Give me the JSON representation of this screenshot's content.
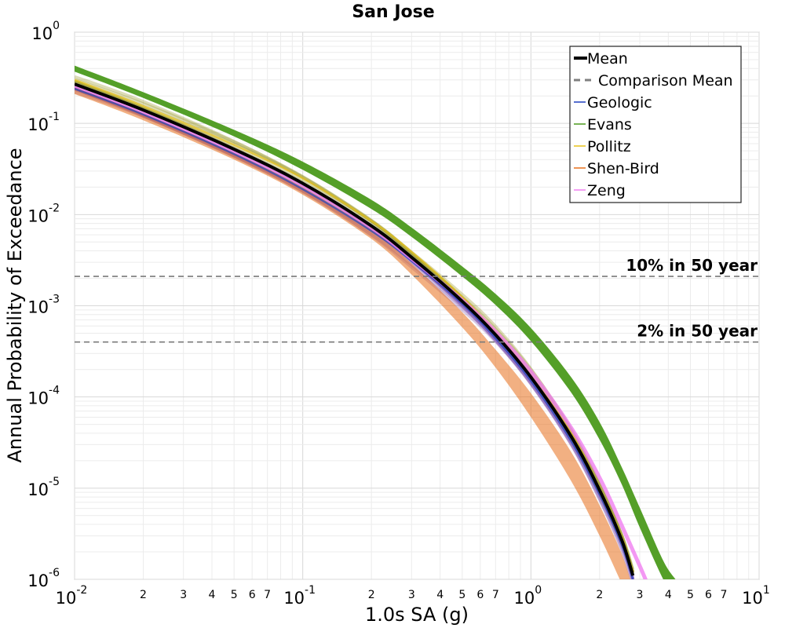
{
  "chart_data": {
    "type": "line",
    "title": "San Jose",
    "xlabel": "1.0s SA (g)",
    "ylabel": "Annual Probability of Exceedance",
    "xscale": "log",
    "yscale": "log",
    "xlim": [
      0.01,
      10
    ],
    "ylim": [
      1e-06,
      1
    ],
    "grid": true,
    "legend_position": "top-right",
    "x_major_ticks": [
      {
        "base": "10",
        "exp": "-2"
      },
      {
        "base": "10",
        "exp": "-1"
      },
      {
        "base": "10",
        "exp": "0"
      },
      {
        "base": "10",
        "exp": "1"
      }
    ],
    "y_major_ticks": [
      {
        "base": "10",
        "exp": "0"
      },
      {
        "base": "10",
        "exp": "-1"
      },
      {
        "base": "10",
        "exp": "-2"
      },
      {
        "base": "10",
        "exp": "-3"
      },
      {
        "base": "10",
        "exp": "-4"
      },
      {
        "base": "10",
        "exp": "-5"
      },
      {
        "base": "10",
        "exp": "-6"
      }
    ],
    "x_minor_tick_labels": [
      "2",
      "3",
      "4",
      "5",
      "6",
      "7"
    ],
    "reference_lines": [
      {
        "label": "10% in 50 year",
        "y": 0.0021
      },
      {
        "label": "2% in 50 year",
        "y": 0.0004
      }
    ],
    "series": [
      {
        "name": "Mean",
        "color": "#000000",
        "style": "solid-thick",
        "x": [
          0.01,
          0.02,
          0.05,
          0.1,
          0.2,
          0.3,
          0.5,
          0.7,
          1.0,
          1.5,
          2.0,
          2.5,
          2.8
        ],
        "y": [
          0.27,
          0.14,
          0.052,
          0.022,
          0.0075,
          0.0034,
          0.00112,
          0.00048,
          0.000165,
          3.7e-05,
          9.5e-06,
          2.7e-06,
          1.1e-06
        ]
      },
      {
        "name": "Comparison Mean",
        "color": "#808080",
        "style": "dashed",
        "x": [],
        "y": []
      },
      {
        "name": "Geologic",
        "color": "#1f3fbf",
        "x": [
          0.01,
          0.02,
          0.05,
          0.1,
          0.2,
          0.3,
          0.5,
          0.7,
          1.0,
          1.5,
          2.0,
          2.5,
          2.8
        ],
        "y": [
          0.24,
          0.125,
          0.046,
          0.019,
          0.0066,
          0.0031,
          0.00105,
          0.00044,
          0.00015,
          3.3e-05,
          8.5e-06,
          2.4e-06,
          1e-06
        ]
      },
      {
        "name": "Evans",
        "color": "#4b9a1c",
        "band_upper": [
          0.43,
          0.22,
          0.085,
          0.038,
          0.0145,
          0.0072,
          0.0027,
          0.00135,
          0.00057,
          0.000165,
          5.3e-05,
          1.7e-05,
          6.1e-06,
          1.6e-06,
          1e-06
        ],
        "band_lower": [
          0.37,
          0.19,
          0.072,
          0.031,
          0.0115,
          0.0057,
          0.0021,
          0.00102,
          0.00041,
          0.000112,
          3.4e-05,
          1.1e-05,
          3.7e-06,
          1e-06,
          6e-07
        ],
        "x": [
          0.01,
          0.02,
          0.05,
          0.1,
          0.2,
          0.3,
          0.5,
          0.7,
          1.0,
          1.5,
          2.0,
          2.5,
          3.0,
          3.8,
          4.3
        ],
        "y": [
          0.4,
          0.205,
          0.078,
          0.034,
          0.013,
          0.0064,
          0.0024,
          0.00118,
          0.00049,
          0.00014,
          4.4e-05,
          1.4e-05,
          4.8e-06,
          1.3e-06,
          8e-07
        ]
      },
      {
        "name": "Pollitz",
        "color": "#e8c21a",
        "x": [
          0.01,
          0.02,
          0.05,
          0.1,
          0.2,
          0.3,
          0.5,
          0.7,
          1.0,
          1.5,
          2.0,
          2.5,
          2.8
        ],
        "y": [
          0.3,
          0.155,
          0.058,
          0.025,
          0.0085,
          0.0039,
          0.00125,
          0.00052,
          0.000175,
          4e-05,
          1e-05,
          2.9e-06,
          1.2e-06
        ]
      },
      {
        "name": "Shen-Bird",
        "color": "#e8701c",
        "band_upper": [
          0.25,
          0.13,
          0.048,
          0.02,
          0.0068,
          0.0029,
          0.00085,
          0.00033,
          0.00011,
          2.5e-05,
          6.5e-06,
          1.9e-06,
          8e-07
        ],
        "band_lower": [
          0.21,
          0.108,
          0.04,
          0.0165,
          0.0054,
          0.0022,
          0.00058,
          0.00021,
          6e-05,
          1.2e-05,
          3e-06,
          9e-07,
          5e-07
        ],
        "x": [
          0.01,
          0.02,
          0.05,
          0.1,
          0.2,
          0.3,
          0.5,
          0.7,
          1.0,
          1.5,
          2.0,
          2.5,
          2.8
        ],
        "y": [
          0.23,
          0.118,
          0.044,
          0.018,
          0.006,
          0.0025,
          0.0007,
          0.00027,
          8.5e-05,
          1.8e-05,
          4.6e-06,
          1.3e-06,
          6e-07
        ]
      },
      {
        "name": "Zeng",
        "color": "#f07ef0",
        "x": [
          0.01,
          0.02,
          0.05,
          0.1,
          0.2,
          0.3,
          0.5,
          0.7,
          1.0,
          1.5,
          2.0,
          2.5,
          3.0,
          3.3
        ],
        "y": [
          0.26,
          0.135,
          0.05,
          0.021,
          0.0072,
          0.0033,
          0.00115,
          0.00052,
          0.00019,
          4.6e-05,
          1.3e-05,
          3.9e-06,
          1.4e-06,
          8e-07
        ]
      }
    ],
    "band_colors": {
      "purple": "#8a62b8",
      "olive": "#9a9a30"
    }
  }
}
